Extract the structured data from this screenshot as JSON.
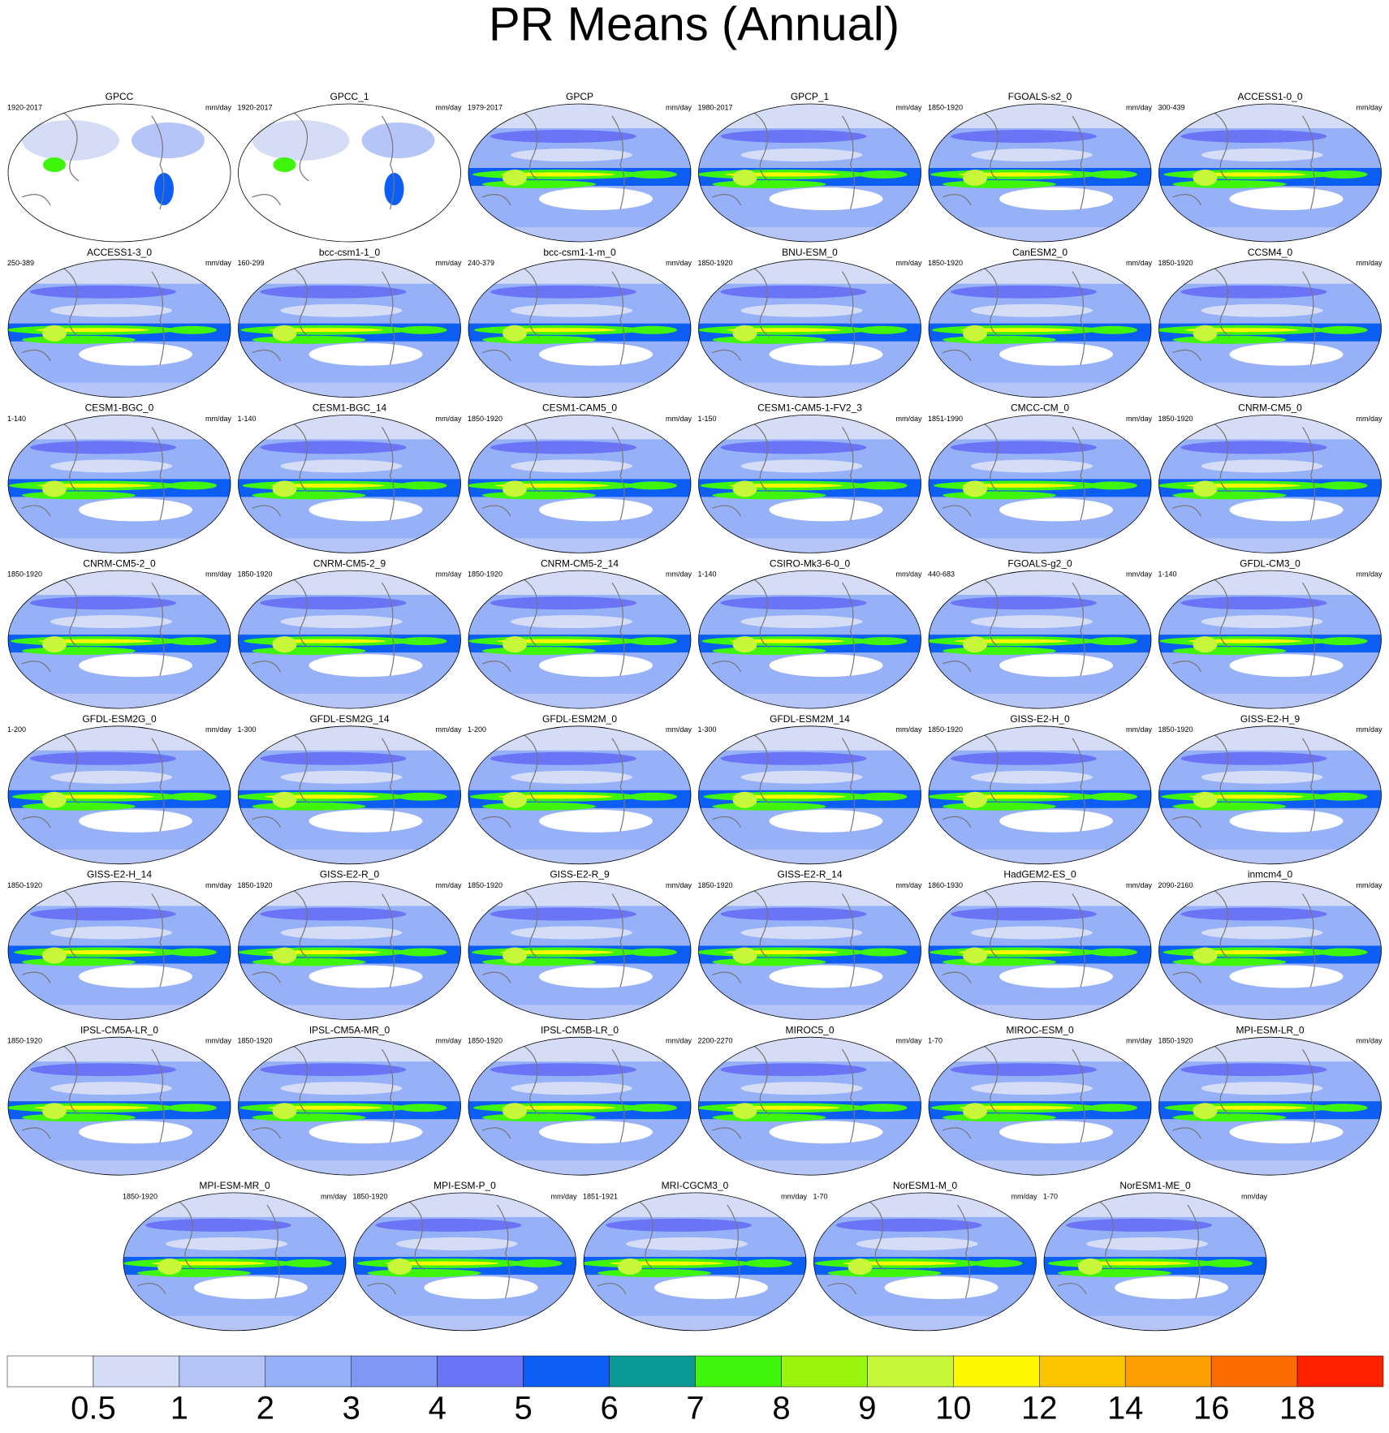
{
  "title": "PR Means (Annual)",
  "panels": [
    {
      "name": "GPCC",
      "period": "1920-2017",
      "units": "mm/day"
    },
    {
      "name": "GPCC_1",
      "period": "1920-2017",
      "units": "mm/day"
    },
    {
      "name": "GPCP",
      "period": "1979-2017",
      "units": "mm/day"
    },
    {
      "name": "GPCP_1",
      "period": "1980-2017",
      "units": "mm/day"
    },
    {
      "name": "FGOALS-s2_0",
      "period": "1850-1920",
      "units": "mm/day"
    },
    {
      "name": "ACCESS1-0_0",
      "period": "300-439",
      "units": "mm/day"
    },
    {
      "name": "ACCESS1-3_0",
      "period": "250-389",
      "units": "mm/day"
    },
    {
      "name": "bcc-csm1-1_0",
      "period": "160-299",
      "units": "mm/day"
    },
    {
      "name": "bcc-csm1-1-m_0",
      "period": "240-379",
      "units": "mm/day"
    },
    {
      "name": "BNU-ESM_0",
      "period": "1850-1920",
      "units": "mm/day"
    },
    {
      "name": "CanESM2_0",
      "period": "1850-1920",
      "units": "mm/day"
    },
    {
      "name": "CCSM4_0",
      "period": "1850-1920",
      "units": "mm/day"
    },
    {
      "name": "CESM1-BGC_0",
      "period": "1-140",
      "units": "mm/day"
    },
    {
      "name": "CESM1-BGC_14",
      "period": "1-140",
      "units": "mm/day"
    },
    {
      "name": "CESM1-CAM5_0",
      "period": "1850-1920",
      "units": "mm/day"
    },
    {
      "name": "CESM1-CAM5-1-FV2_3",
      "period": "1-150",
      "units": "mm/day"
    },
    {
      "name": "CMCC-CM_0",
      "period": "1851-1990",
      "units": "mm/day"
    },
    {
      "name": "CNRM-CM5_0",
      "period": "1850-1920",
      "units": "mm/day"
    },
    {
      "name": "CNRM-CM5-2_0",
      "period": "1850-1920",
      "units": "mm/day"
    },
    {
      "name": "CNRM-CM5-2_9",
      "period": "1850-1920",
      "units": "mm/day"
    },
    {
      "name": "CNRM-CM5-2_14",
      "period": "1850-1920",
      "units": "mm/day"
    },
    {
      "name": "CSIRO-Mk3-6-0_0",
      "period": "1-140",
      "units": "mm/day"
    },
    {
      "name": "FGOALS-g2_0",
      "period": "440-683",
      "units": "mm/day"
    },
    {
      "name": "GFDL-CM3_0",
      "period": "1-140",
      "units": "mm/day"
    },
    {
      "name": "GFDL-ESM2G_0",
      "period": "1-200",
      "units": "mm/day"
    },
    {
      "name": "GFDL-ESM2G_14",
      "period": "1-300",
      "units": "mm/day"
    },
    {
      "name": "GFDL-ESM2M_0",
      "period": "1-200",
      "units": "mm/day"
    },
    {
      "name": "GFDL-ESM2M_14",
      "period": "1-300",
      "units": "mm/day"
    },
    {
      "name": "GISS-E2-H_0",
      "period": "1850-1920",
      "units": "mm/day"
    },
    {
      "name": "GISS-E2-H_9",
      "period": "1850-1920",
      "units": "mm/day"
    },
    {
      "name": "GISS-E2-H_14",
      "period": "1850-1920",
      "units": "mm/day"
    },
    {
      "name": "GISS-E2-R_0",
      "period": "1850-1920",
      "units": "mm/day"
    },
    {
      "name": "GISS-E2-R_9",
      "period": "1850-1920",
      "units": "mm/day"
    },
    {
      "name": "GISS-E2-R_14",
      "period": "1850-1920",
      "units": "mm/day"
    },
    {
      "name": "HadGEM2-ES_0",
      "period": "1860-1930",
      "units": "mm/day"
    },
    {
      "name": "inmcm4_0",
      "period": "2090-2160",
      "units": "mm/day"
    },
    {
      "name": "IPSL-CM5A-LR_0",
      "period": "1850-1920",
      "units": "mm/day"
    },
    {
      "name": "IPSL-CM5A-MR_0",
      "period": "1850-1920",
      "units": "mm/day"
    },
    {
      "name": "IPSL-CM5B-LR_0",
      "period": "1850-1920",
      "units": "mm/day"
    },
    {
      "name": "MIROC5_0",
      "period": "2200-2270",
      "units": "mm/day"
    },
    {
      "name": "MIROC-ESM_0",
      "period": "1-70",
      "units": "mm/day"
    },
    {
      "name": "MPI-ESM-LR_0",
      "period": "1850-1920",
      "units": "mm/day"
    },
    {
      "name": "MPI-ESM-MR_0",
      "period": "1850-1920",
      "units": "mm/day"
    },
    {
      "name": "MPI-ESM-P_0",
      "period": "1850-1920",
      "units": "mm/day"
    },
    {
      "name": "MRI-CGCM3_0",
      "period": "1851-1921",
      "units": "mm/day"
    },
    {
      "name": "NorESM1-M_0",
      "period": "1-70",
      "units": "mm/day"
    },
    {
      "name": "NorESM1-ME_0",
      "period": "1-70",
      "units": "mm/day"
    }
  ],
  "colorbar": {
    "levels": [
      0.5,
      1,
      2,
      3,
      4,
      5,
      6,
      7,
      8,
      9,
      10,
      12,
      14,
      16,
      18
    ],
    "colors": [
      "#ffffff",
      "#d5ddf6",
      "#b5c5f7",
      "#96b1f8",
      "#8097f6",
      "#6b74f4",
      "#0c5ef5",
      "#0a9a96",
      "#3ff50c",
      "#9af60c",
      "#c8f73a",
      "#fbf700",
      "#fbc500",
      "#fb9f00",
      "#fb6c00",
      "#fd2100"
    ]
  }
}
